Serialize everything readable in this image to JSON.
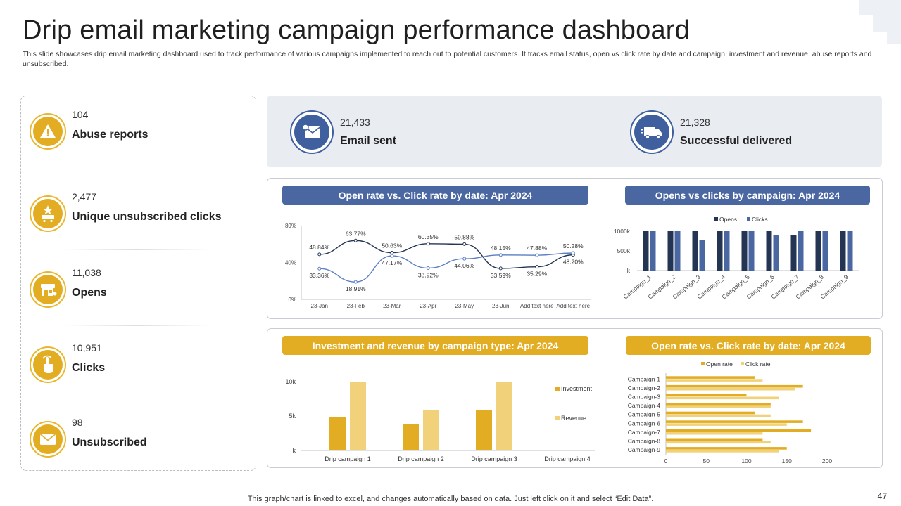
{
  "title": "Drip email marketing campaign performance dashboard",
  "subtitle": "This slide showcases drip email marketing dashboard used to track performance of various campaigns implemented to reach out to potential customers. It tracks email status, open vs click rate by date and campaign, investment and revenue, abuse reports and unsubscribed.",
  "kpis": [
    {
      "value": "104",
      "label": "Abuse reports",
      "icon": "warning-icon"
    },
    {
      "value": "2,477",
      "label": "Unique unsubscribed clicks",
      "icon": "star-cart-icon"
    },
    {
      "value": "11,038",
      "label": "Opens",
      "icon": "store-icon"
    },
    {
      "value": "10,951",
      "label": "Clicks",
      "icon": "hand-pointer-icon"
    },
    {
      "value": "98",
      "label": "Unsubscribed",
      "icon": "envelope-icon"
    }
  ],
  "band": [
    {
      "value": "21,433",
      "label": "Email sent",
      "icon": "envelope-send-icon"
    },
    {
      "value": "21,328",
      "label": "Successful delivered",
      "icon": "delivery-truck-icon"
    }
  ],
  "colors": {
    "gold": "#e2ad22",
    "gold_light": "#f1d27a",
    "navy": "#243554",
    "blue": "#4a67a1",
    "line_light": "#5a7fc4"
  },
  "footer": "This graph/chart is linked to excel, and changes automatically based on data. Just left click on it and select “Edit Data”.",
  "page_number": "47",
  "chart_data": [
    {
      "id": "line",
      "type": "line",
      "title": "Open rate vs. Click rate by date: Apr 2024",
      "categories": [
        "23-Jan",
        "23-Feb",
        "23-Mar",
        "23-Apr",
        "23-May",
        "23-Jun",
        "Add text here",
        "Add text here"
      ],
      "yticks": [
        "0%",
        "40%",
        "80%"
      ],
      "ylim": [
        0,
        80
      ],
      "series": [
        {
          "name": "Open rate",
          "values": [
            48.84,
            63.77,
            50.63,
            60.35,
            59.88,
            33.59,
            35.29,
            48.2
          ],
          "labels": [
            "48.84%",
            "63.77%",
            "50.63%",
            "60.35%",
            "59.88%",
            "33.59%",
            "35.29%",
            "48.20%"
          ]
        },
        {
          "name": "Click rate",
          "values": [
            33.36,
            18.91,
            47.17,
            33.92,
            44.06,
            48.15,
            47.88,
            50.28
          ],
          "labels": [
            "33.36%",
            "18.91%",
            "47.17%",
            "33.92%",
            "44.06%",
            "48.15%",
            "47.88%",
            "50.28%"
          ]
        }
      ]
    },
    {
      "id": "campaign",
      "type": "bar",
      "title": "Opens vs clicks by campaign: Apr 2024",
      "categories": [
        "Campaign_1",
        "Campaign_2",
        "Campaign_3",
        "Campaign_4",
        "Campaign_5",
        "Campaign_6",
        "Campaign_7",
        "Campaign_8",
        "Campaign_9"
      ],
      "yticks": [
        "k",
        "500k",
        "1000k"
      ],
      "ylim": [
        0,
        1000
      ],
      "legend": [
        "Opens",
        "Clicks"
      ],
      "series": [
        {
          "name": "Opens",
          "values": [
            1000,
            1000,
            1000,
            1000,
            1000,
            1000,
            900,
            1000,
            1000
          ]
        },
        {
          "name": "Clicks",
          "values": [
            1000,
            1000,
            780,
            1000,
            1000,
            900,
            1000,
            1000,
            1000
          ]
        }
      ]
    },
    {
      "id": "invest",
      "type": "bar",
      "title": "Investment and revenue by campaign type: Apr 2024",
      "categories": [
        "Drip campaign 1",
        "Drip campaign 2",
        "Drip campaign 3",
        "Drip campaign 4"
      ],
      "yticks": [
        "k",
        "5k",
        "10k"
      ],
      "ylim": [
        0,
        10
      ],
      "legend": [
        "Investment",
        "Revenue"
      ],
      "series": [
        {
          "name": "Investment",
          "values": [
            4.8,
            3.8,
            5.9,
            0
          ]
        },
        {
          "name": "Revenue",
          "values": [
            9.9,
            5.9,
            10,
            0
          ]
        }
      ]
    },
    {
      "id": "hbar",
      "type": "bar",
      "orientation": "horizontal",
      "title": "Open rate vs. Click rate by date: Apr 2024",
      "categories": [
        "Campaign-1",
        "Campaign-2",
        "Campaign-3",
        "Campaign-4",
        "Campaign-5",
        "Campaign-6",
        "Campaign-7",
        "Campaign-8",
        "Campaign-9"
      ],
      "xticks": [
        "0",
        "50",
        "100",
        "150",
        "200"
      ],
      "xlim": [
        0,
        200
      ],
      "legend": [
        "Open rate",
        "Click rate"
      ],
      "series": [
        {
          "name": "Open rate",
          "values": [
            110,
            170,
            100,
            130,
            110,
            170,
            180,
            120,
            150
          ]
        },
        {
          "name": "Click rate",
          "values": [
            120,
            160,
            140,
            130,
            130,
            150,
            120,
            130,
            140
          ]
        }
      ]
    }
  ]
}
